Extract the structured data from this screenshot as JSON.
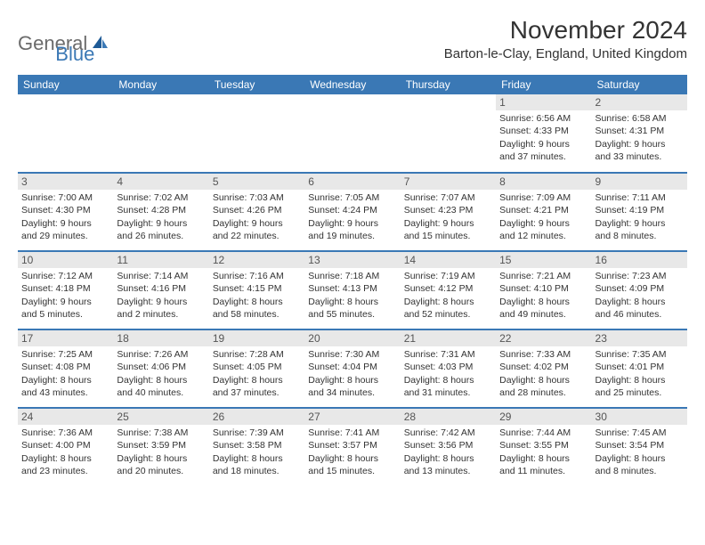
{
  "colors": {
    "header_bg": "#3a78b5",
    "header_text": "#ffffff",
    "daynum_bg": "#e8e8e8",
    "daynum_text": "#555555",
    "body_text": "#333333",
    "logo_gray": "#6b6b6b",
    "logo_blue": "#3a78b5",
    "row_sep": "#3a78b5"
  },
  "typography": {
    "title_fontsize": 28,
    "location_fontsize": 15,
    "header_fontsize": 12,
    "cell_fontsize": 10.5,
    "logo_fontsize": 22
  },
  "logo": {
    "part1": "General",
    "part2": "Blue"
  },
  "title": "November 2024",
  "location": "Barton-le-Clay, England, United Kingdom",
  "day_headers": [
    "Sunday",
    "Monday",
    "Tuesday",
    "Wednesday",
    "Thursday",
    "Friday",
    "Saturday"
  ],
  "weeks": [
    [
      null,
      null,
      null,
      null,
      null,
      {
        "d": "1",
        "sr": "Sunrise: 6:56 AM",
        "ss": "Sunset: 4:33 PM",
        "dl1": "Daylight: 9 hours",
        "dl2": "and 37 minutes."
      },
      {
        "d": "2",
        "sr": "Sunrise: 6:58 AM",
        "ss": "Sunset: 4:31 PM",
        "dl1": "Daylight: 9 hours",
        "dl2": "and 33 minutes."
      }
    ],
    [
      {
        "d": "3",
        "sr": "Sunrise: 7:00 AM",
        "ss": "Sunset: 4:30 PM",
        "dl1": "Daylight: 9 hours",
        "dl2": "and 29 minutes."
      },
      {
        "d": "4",
        "sr": "Sunrise: 7:02 AM",
        "ss": "Sunset: 4:28 PM",
        "dl1": "Daylight: 9 hours",
        "dl2": "and 26 minutes."
      },
      {
        "d": "5",
        "sr": "Sunrise: 7:03 AM",
        "ss": "Sunset: 4:26 PM",
        "dl1": "Daylight: 9 hours",
        "dl2": "and 22 minutes."
      },
      {
        "d": "6",
        "sr": "Sunrise: 7:05 AM",
        "ss": "Sunset: 4:24 PM",
        "dl1": "Daylight: 9 hours",
        "dl2": "and 19 minutes."
      },
      {
        "d": "7",
        "sr": "Sunrise: 7:07 AM",
        "ss": "Sunset: 4:23 PM",
        "dl1": "Daylight: 9 hours",
        "dl2": "and 15 minutes."
      },
      {
        "d": "8",
        "sr": "Sunrise: 7:09 AM",
        "ss": "Sunset: 4:21 PM",
        "dl1": "Daylight: 9 hours",
        "dl2": "and 12 minutes."
      },
      {
        "d": "9",
        "sr": "Sunrise: 7:11 AM",
        "ss": "Sunset: 4:19 PM",
        "dl1": "Daylight: 9 hours",
        "dl2": "and 8 minutes."
      }
    ],
    [
      {
        "d": "10",
        "sr": "Sunrise: 7:12 AM",
        "ss": "Sunset: 4:18 PM",
        "dl1": "Daylight: 9 hours",
        "dl2": "and 5 minutes."
      },
      {
        "d": "11",
        "sr": "Sunrise: 7:14 AM",
        "ss": "Sunset: 4:16 PM",
        "dl1": "Daylight: 9 hours",
        "dl2": "and 2 minutes."
      },
      {
        "d": "12",
        "sr": "Sunrise: 7:16 AM",
        "ss": "Sunset: 4:15 PM",
        "dl1": "Daylight: 8 hours",
        "dl2": "and 58 minutes."
      },
      {
        "d": "13",
        "sr": "Sunrise: 7:18 AM",
        "ss": "Sunset: 4:13 PM",
        "dl1": "Daylight: 8 hours",
        "dl2": "and 55 minutes."
      },
      {
        "d": "14",
        "sr": "Sunrise: 7:19 AM",
        "ss": "Sunset: 4:12 PM",
        "dl1": "Daylight: 8 hours",
        "dl2": "and 52 minutes."
      },
      {
        "d": "15",
        "sr": "Sunrise: 7:21 AM",
        "ss": "Sunset: 4:10 PM",
        "dl1": "Daylight: 8 hours",
        "dl2": "and 49 minutes."
      },
      {
        "d": "16",
        "sr": "Sunrise: 7:23 AM",
        "ss": "Sunset: 4:09 PM",
        "dl1": "Daylight: 8 hours",
        "dl2": "and 46 minutes."
      }
    ],
    [
      {
        "d": "17",
        "sr": "Sunrise: 7:25 AM",
        "ss": "Sunset: 4:08 PM",
        "dl1": "Daylight: 8 hours",
        "dl2": "and 43 minutes."
      },
      {
        "d": "18",
        "sr": "Sunrise: 7:26 AM",
        "ss": "Sunset: 4:06 PM",
        "dl1": "Daylight: 8 hours",
        "dl2": "and 40 minutes."
      },
      {
        "d": "19",
        "sr": "Sunrise: 7:28 AM",
        "ss": "Sunset: 4:05 PM",
        "dl1": "Daylight: 8 hours",
        "dl2": "and 37 minutes."
      },
      {
        "d": "20",
        "sr": "Sunrise: 7:30 AM",
        "ss": "Sunset: 4:04 PM",
        "dl1": "Daylight: 8 hours",
        "dl2": "and 34 minutes."
      },
      {
        "d": "21",
        "sr": "Sunrise: 7:31 AM",
        "ss": "Sunset: 4:03 PM",
        "dl1": "Daylight: 8 hours",
        "dl2": "and 31 minutes."
      },
      {
        "d": "22",
        "sr": "Sunrise: 7:33 AM",
        "ss": "Sunset: 4:02 PM",
        "dl1": "Daylight: 8 hours",
        "dl2": "and 28 minutes."
      },
      {
        "d": "23",
        "sr": "Sunrise: 7:35 AM",
        "ss": "Sunset: 4:01 PM",
        "dl1": "Daylight: 8 hours",
        "dl2": "and 25 minutes."
      }
    ],
    [
      {
        "d": "24",
        "sr": "Sunrise: 7:36 AM",
        "ss": "Sunset: 4:00 PM",
        "dl1": "Daylight: 8 hours",
        "dl2": "and 23 minutes."
      },
      {
        "d": "25",
        "sr": "Sunrise: 7:38 AM",
        "ss": "Sunset: 3:59 PM",
        "dl1": "Daylight: 8 hours",
        "dl2": "and 20 minutes."
      },
      {
        "d": "26",
        "sr": "Sunrise: 7:39 AM",
        "ss": "Sunset: 3:58 PM",
        "dl1": "Daylight: 8 hours",
        "dl2": "and 18 minutes."
      },
      {
        "d": "27",
        "sr": "Sunrise: 7:41 AM",
        "ss": "Sunset: 3:57 PM",
        "dl1": "Daylight: 8 hours",
        "dl2": "and 15 minutes."
      },
      {
        "d": "28",
        "sr": "Sunrise: 7:42 AM",
        "ss": "Sunset: 3:56 PM",
        "dl1": "Daylight: 8 hours",
        "dl2": "and 13 minutes."
      },
      {
        "d": "29",
        "sr": "Sunrise: 7:44 AM",
        "ss": "Sunset: 3:55 PM",
        "dl1": "Daylight: 8 hours",
        "dl2": "and 11 minutes."
      },
      {
        "d": "30",
        "sr": "Sunrise: 7:45 AM",
        "ss": "Sunset: 3:54 PM",
        "dl1": "Daylight: 8 hours",
        "dl2": "and 8 minutes."
      }
    ]
  ]
}
